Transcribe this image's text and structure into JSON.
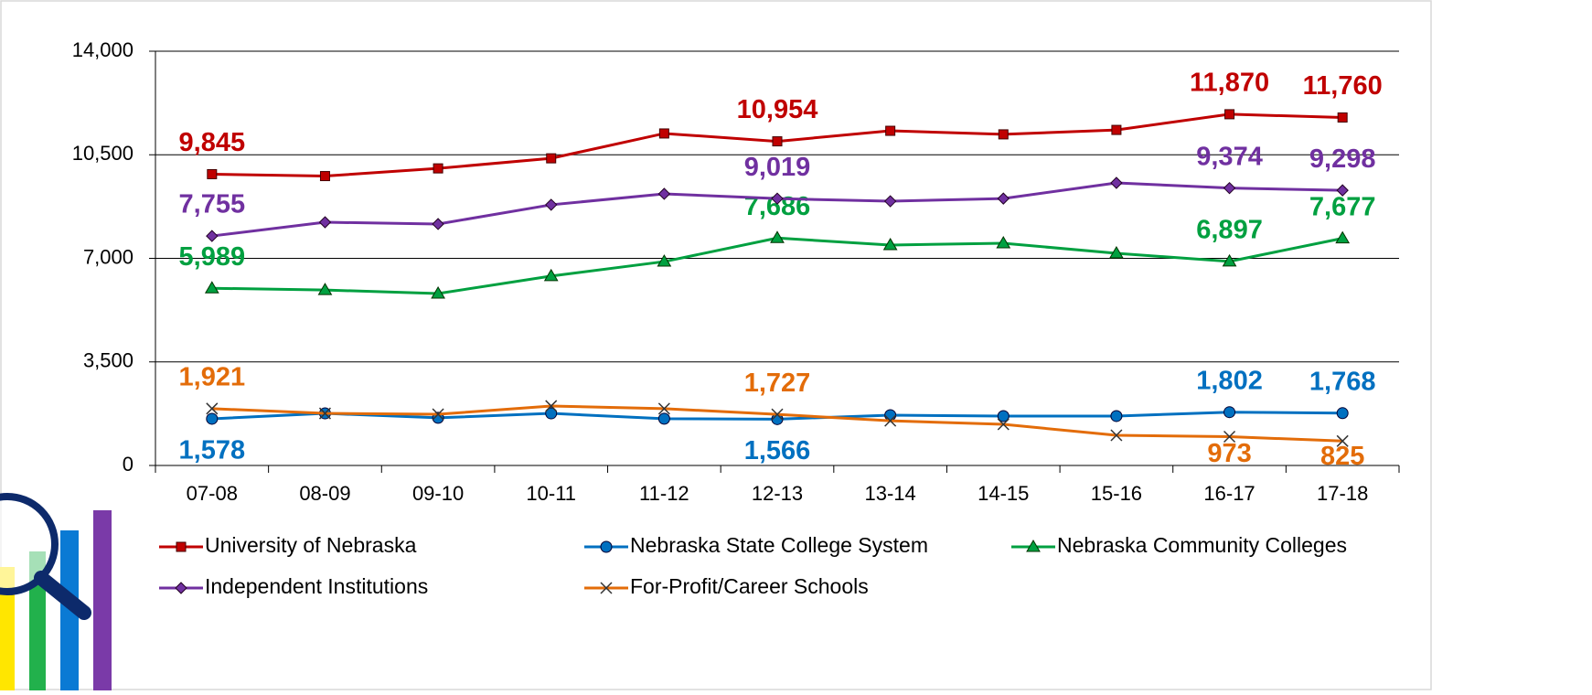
{
  "chart_data": {
    "type": "line",
    "categories": [
      "07-08",
      "08-09",
      "09-10",
      "10-11",
      "11-12",
      "12-13",
      "13-14",
      "14-15",
      "15-16",
      "16-17",
      "17-18"
    ],
    "ylim": [
      0,
      14000
    ],
    "yticks": [
      {
        "value": 0,
        "label": "0"
      },
      {
        "value": 3500,
        "label": "3,500"
      },
      {
        "value": 7000,
        "label": "7,000"
      },
      {
        "value": 10500,
        "label": "10,500"
      },
      {
        "value": 14000,
        "label": "14,000"
      }
    ],
    "grid": true,
    "legend": "bottom",
    "series": [
      {
        "name": "University of Nebraska",
        "color": "#c00000",
        "marker": "square",
        "values": [
          9845,
          9780,
          10040,
          10380,
          11220,
          10954,
          11310,
          11190,
          11340,
          11870,
          11760
        ],
        "value_labels": [
          "9,845",
          null,
          null,
          null,
          null,
          "10,954",
          null,
          null,
          null,
          "11,870",
          "11,760"
        ]
      },
      {
        "name": "Nebraska State College System",
        "color": "#0070c0",
        "marker": "circle",
        "values": [
          1578,
          1760,
          1610,
          1760,
          1580,
          1566,
          1700,
          1670,
          1670,
          1802,
          1768
        ],
        "value_labels": [
          "1,578",
          null,
          null,
          null,
          null,
          "1,566",
          null,
          null,
          null,
          "1,802",
          "1,768"
        ]
      },
      {
        "name": "Nebraska Community Colleges",
        "color": "#00a040",
        "marker": "triangle",
        "values": [
          5989,
          5930,
          5810,
          6400,
          6890,
          7686,
          7450,
          7510,
          7170,
          6897,
          7677
        ],
        "value_labels": [
          "5,989",
          null,
          null,
          null,
          null,
          "7,686",
          null,
          null,
          null,
          "6,897",
          "7,677"
        ]
      },
      {
        "name": "Independent Institutions",
        "color": "#7030a0",
        "marker": "diamond",
        "values": [
          7755,
          8220,
          8160,
          8810,
          9180,
          9019,
          8930,
          9020,
          9550,
          9374,
          9298
        ],
        "value_labels": [
          "7,755",
          null,
          null,
          null,
          null,
          "9,019",
          null,
          null,
          null,
          "9,374",
          "9,298"
        ]
      },
      {
        "name": "For-Profit/Career Schools",
        "color": "#e36c09",
        "marker": "x",
        "values": [
          1921,
          1760,
          1730,
          2010,
          1920,
          1727,
          1510,
          1390,
          1020,
          973,
          825
        ],
        "value_labels": [
          "1,921",
          null,
          null,
          null,
          null,
          "1,727",
          null,
          null,
          null,
          "973",
          "825"
        ]
      }
    ]
  }
}
